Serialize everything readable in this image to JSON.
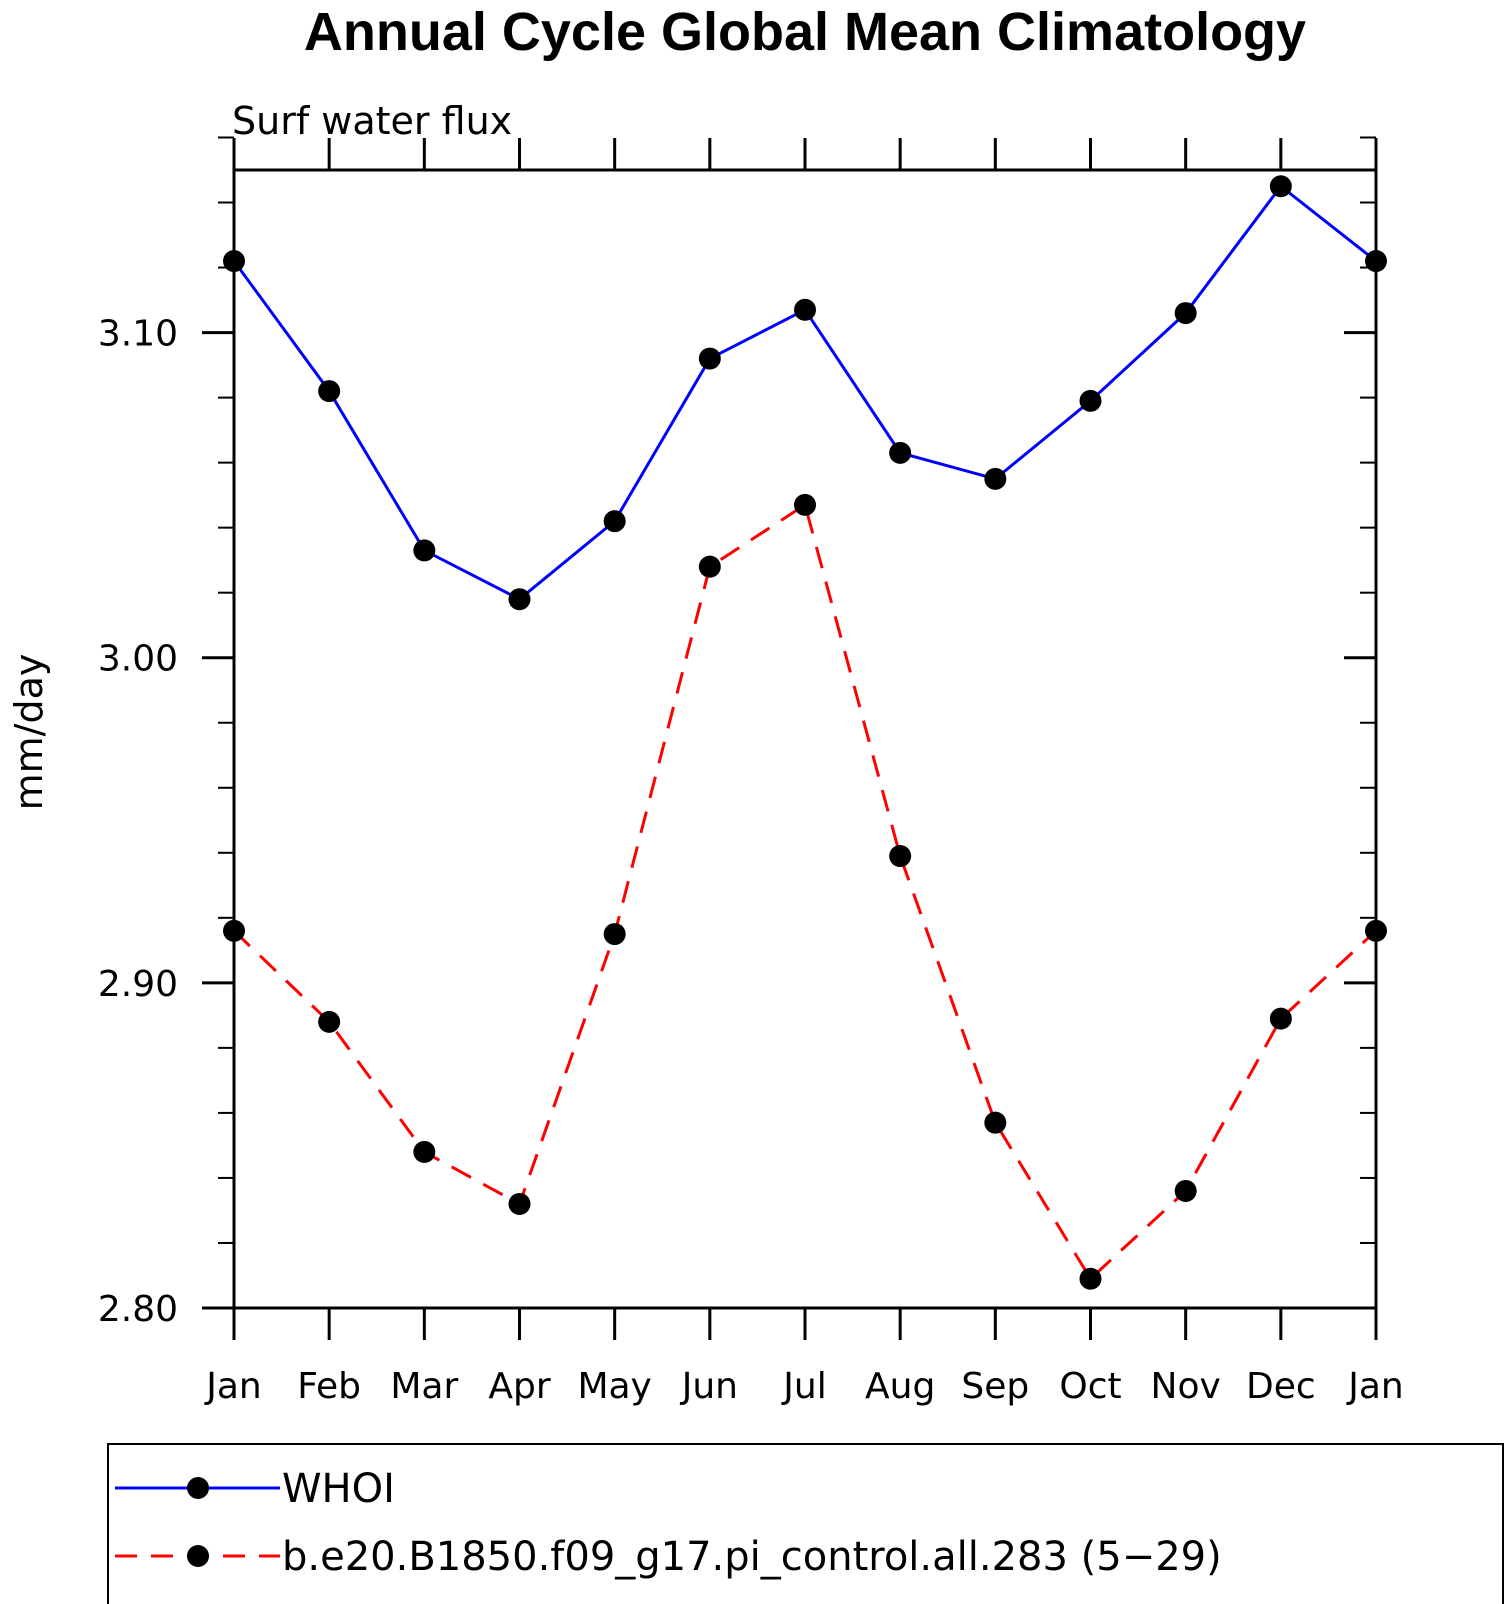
{
  "chart_data": {
    "type": "line",
    "title": "Annual Cycle Global Mean Climatology",
    "subtitle": "Surf water flux",
    "xlabel": "",
    "ylabel": "mm/day",
    "categories": [
      "Jan",
      "Feb",
      "Mar",
      "Apr",
      "May",
      "Jun",
      "Jul",
      "Aug",
      "Sep",
      "Oct",
      "Nov",
      "Dec",
      "Jan"
    ],
    "ylim": [
      2.8,
      3.15
    ],
    "yticks": [
      2.8,
      2.9,
      3.0,
      3.1
    ],
    "ytick_labels": [
      "2.80",
      "2.90",
      "3.00",
      "3.10"
    ],
    "y_minor_step": 0.02,
    "grid": false,
    "legend_position": "bottom",
    "series": [
      {
        "name": "WHOI",
        "color": "#0000ff",
        "line_style": "solid",
        "marker": "filled-circle",
        "values": [
          3.122,
          3.082,
          3.033,
          3.018,
          3.042,
          3.092,
          3.107,
          3.063,
          3.055,
          3.079,
          3.106,
          3.145,
          3.122
        ]
      },
      {
        "name": "b.e20.B1850.f09_g17.pi_control.all.283 (5−29)",
        "color": "#ff0000",
        "line_style": "dashed",
        "marker": "filled-circle",
        "values": [
          2.916,
          2.888,
          2.848,
          2.832,
          2.915,
          3.028,
          3.047,
          2.939,
          2.857,
          2.809,
          2.836,
          2.889,
          2.916
        ]
      }
    ]
  }
}
